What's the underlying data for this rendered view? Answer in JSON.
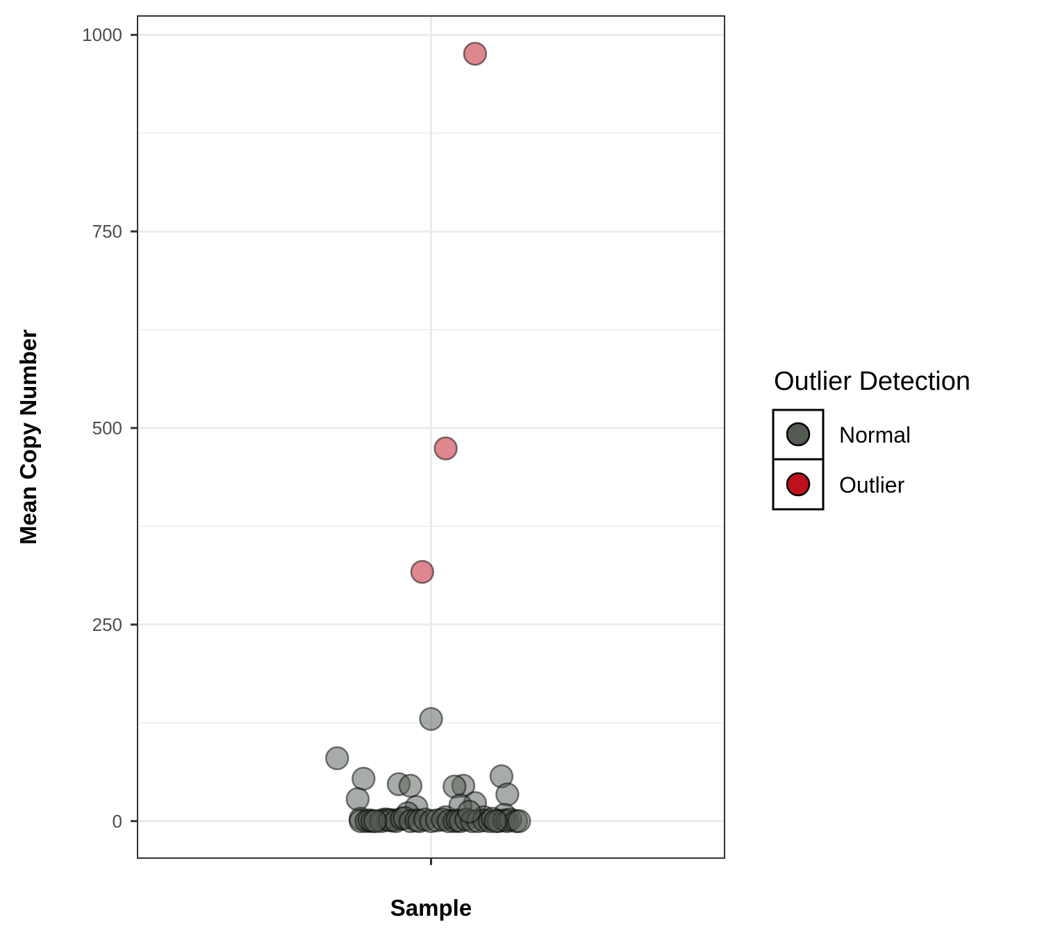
{
  "chart_data": {
    "type": "scatter",
    "title": "",
    "xlabel": "Sample",
    "ylabel": "Mean Copy Number",
    "x_category": "",
    "ylim": [
      -47,
      1024
    ],
    "y_ticks": [
      0,
      250,
      500,
      750,
      1000
    ],
    "y_tick_labels": [
      "0",
      "250",
      "500",
      "750",
      "1000"
    ],
    "grid": true,
    "legend": {
      "title": "Outlier Detection",
      "position": "right",
      "entries": [
        {
          "label": "Normal",
          "color": "#525a52"
        },
        {
          "label": "Outlier",
          "color": "#c0101e"
        }
      ]
    },
    "series": [
      {
        "name": "Normal",
        "color": "#525a52",
        "opacity": 0.5,
        "x_jitter": [
          0.0,
          -0.32,
          -0.23,
          -0.11,
          0.11,
          -0.07,
          0.08,
          0.24,
          0.15,
          0.26,
          -0.25,
          -0.24,
          -0.05,
          0.05,
          0.18,
          0.25,
          0.1,
          -0.08,
          -0.16,
          -0.15,
          -0.13,
          -0.24,
          -0.22,
          -0.21,
          -0.2,
          -0.17,
          -0.14,
          -0.12,
          -0.1,
          -0.09,
          -0.07,
          -0.05,
          -0.04,
          -0.02,
          0.0,
          0.02,
          0.04,
          0.06,
          0.08,
          0.09,
          0.1,
          0.12,
          0.14,
          0.16,
          0.18,
          0.2,
          0.21,
          0.23,
          0.25,
          0.26,
          0.27,
          0.29,
          0.3,
          -0.19,
          0.22,
          0.13
        ],
        "y": [
          130,
          80,
          54,
          47,
          45,
          45,
          44,
          57,
          23,
          34,
          28,
          3,
          18,
          5,
          5,
          8,
          20,
          10,
          2,
          2,
          1,
          0,
          0,
          1,
          0,
          0,
          1,
          0,
          3,
          4,
          0,
          1,
          0,
          2,
          0,
          1,
          2,
          0,
          0,
          1,
          0,
          2,
          0,
          0,
          1,
          0,
          3,
          0,
          1,
          0,
          2,
          0,
          0,
          0,
          0,
          12
        ]
      },
      {
        "name": "Outlier",
        "color": "#c0101e",
        "opacity": 0.5,
        "x_jitter": [
          0.15,
          0.05,
          -0.03
        ],
        "y": [
          976,
          474,
          317
        ]
      }
    ]
  }
}
